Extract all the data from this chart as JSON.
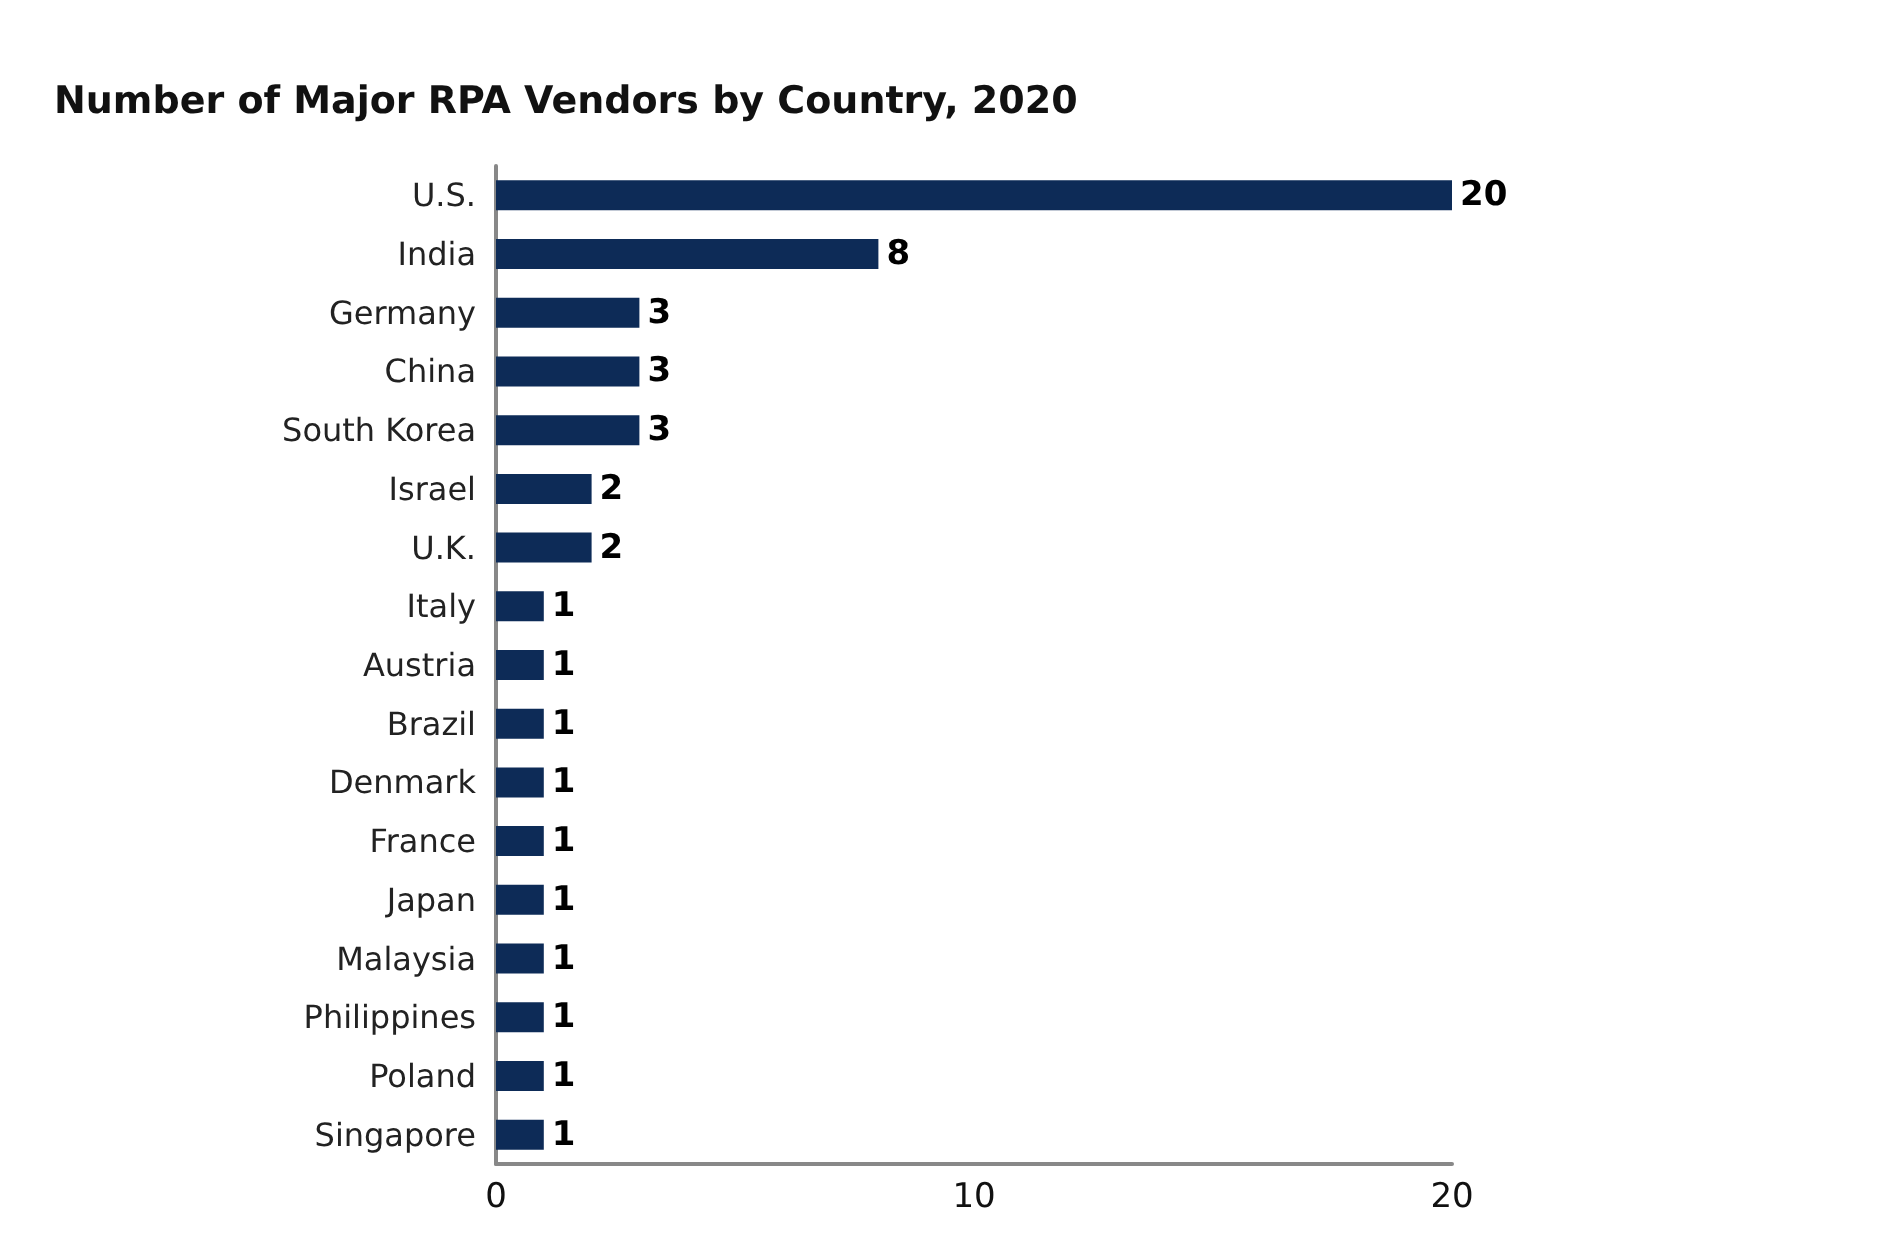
{
  "chart_data": {
    "type": "bar",
    "orientation": "horizontal",
    "title": "Number of Major RPA Vendors by Country, 2020",
    "categories": [
      "U.S.",
      "India",
      "Germany",
      "China",
      "South Korea",
      "Israel",
      "U.K.",
      "Italy",
      "Austria",
      "Brazil",
      "Denmark",
      "France",
      "Japan",
      "Malaysia",
      "Philippines",
      "Poland",
      "Singapore"
    ],
    "values": [
      20,
      8,
      3,
      3,
      3,
      2,
      2,
      1,
      1,
      1,
      1,
      1,
      1,
      1,
      1,
      1,
      1
    ],
    "color": "#0d2b57",
    "xlim": [
      0,
      20
    ],
    "xticks": [
      0,
      10,
      20
    ],
    "data_labels": true,
    "grid": false
  }
}
